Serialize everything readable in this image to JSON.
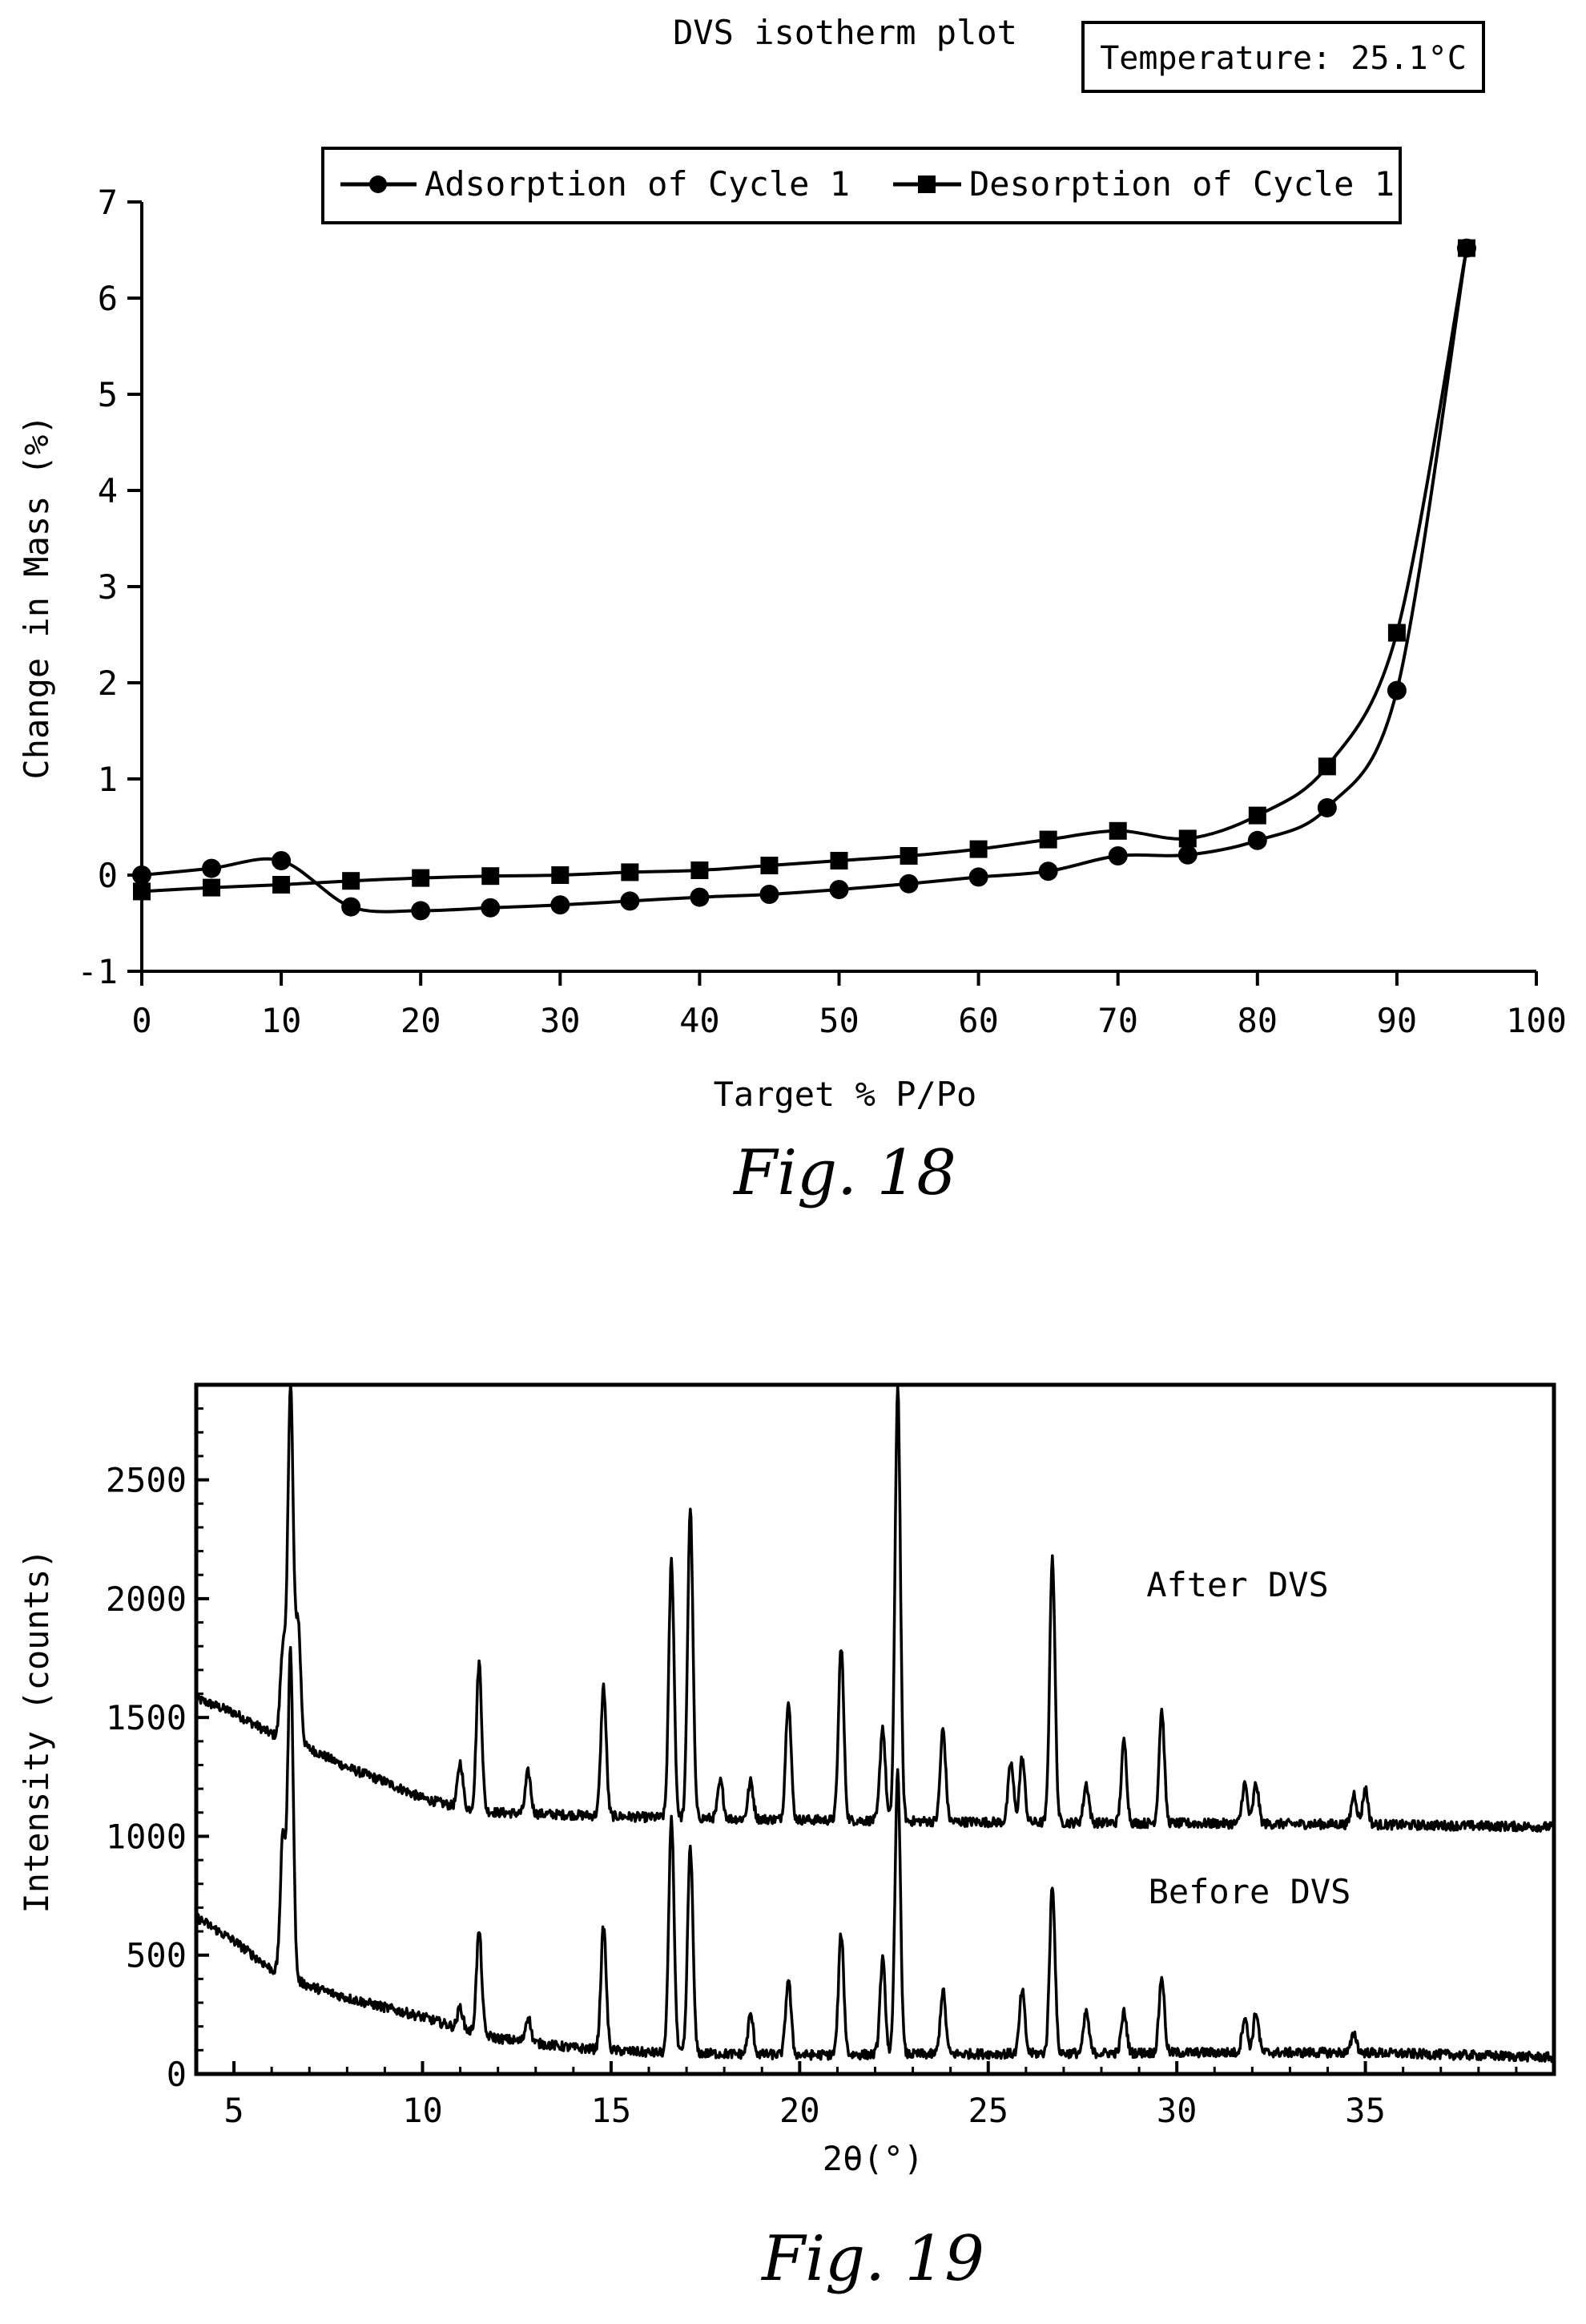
{
  "fig18": {
    "caption": "Fig. 18",
    "temperature_box": "Temperature: 25.1°C",
    "chart_data": {
      "type": "line",
      "title": "DVS isotherm plot",
      "xlabel": "Target % P/Po",
      "ylabel": "Change in Mass (%)",
      "xlim": [
        0,
        100
      ],
      "ylim": [
        -1,
        7
      ],
      "xticks": [
        0,
        10,
        20,
        30,
        40,
        50,
        60,
        70,
        80,
        90,
        100
      ],
      "yticks": [
        -1,
        0,
        1,
        2,
        3,
        4,
        5,
        6,
        7
      ],
      "grid": false,
      "legend_position": "top",
      "series": [
        {
          "name": "Adsorption of Cycle 1",
          "marker": "circle",
          "x": [
            0,
            5,
            10,
            15,
            20,
            25,
            30,
            35,
            40,
            45,
            50,
            55,
            60,
            65,
            70,
            75,
            80,
            85,
            90,
            95
          ],
          "y": [
            0.0,
            0.07,
            0.15,
            -0.33,
            -0.37,
            -0.34,
            -0.31,
            -0.27,
            -0.23,
            -0.2,
            -0.15,
            -0.09,
            -0.02,
            0.04,
            0.2,
            0.21,
            0.36,
            0.7,
            1.92,
            6.52
          ]
        },
        {
          "name": "Desorption of Cycle 1",
          "marker": "square",
          "x": [
            0,
            5,
            10,
            15,
            20,
            25,
            30,
            35,
            40,
            45,
            50,
            55,
            60,
            65,
            70,
            75,
            80,
            85,
            90,
            95
          ],
          "y": [
            -0.17,
            -0.13,
            -0.1,
            -0.06,
            -0.03,
            -0.01,
            0.0,
            0.03,
            0.05,
            0.1,
            0.15,
            0.2,
            0.27,
            0.37,
            0.46,
            0.38,
            0.62,
            1.13,
            2.52,
            6.52
          ]
        }
      ]
    }
  },
  "fig19": {
    "caption": "Fig. 19",
    "chart_data": {
      "type": "line",
      "title": "",
      "xlabel": "2θ(°)",
      "ylabel": "Intensity (counts)",
      "xlim": [
        4,
        40
      ],
      "ylim": [
        0,
        2900
      ],
      "xticks": [
        5,
        10,
        15,
        20,
        25,
        30,
        35
      ],
      "yticks": [
        0,
        500,
        1000,
        1500,
        2000,
        2500
      ],
      "grid": false,
      "series": [
        {
          "name": "After DVS",
          "baseline": [
            [
              4,
              1580
            ],
            [
              5,
              1520
            ],
            [
              6,
              1430
            ],
            [
              7,
              1370
            ],
            [
              8,
              1290
            ],
            [
              9,
              1230
            ],
            [
              10,
              1160
            ],
            [
              11,
              1120
            ],
            [
              12,
              1100
            ],
            [
              14,
              1090
            ],
            [
              16,
              1080
            ],
            [
              20,
              1070
            ],
            [
              25,
              1060
            ],
            [
              30,
              1055
            ],
            [
              35,
              1050
            ],
            [
              40,
              1040
            ]
          ],
          "peaks": [
            [
              6.3,
              1800
            ],
            [
              6.5,
              2900
            ],
            [
              6.7,
              1900
            ],
            [
              11.0,
              1310
            ],
            [
              11.5,
              1730
            ],
            [
              12.8,
              1270
            ],
            [
              14.8,
              1630
            ],
            [
              16.6,
              2160
            ],
            [
              17.1,
              2380
            ],
            [
              17.9,
              1230
            ],
            [
              18.7,
              1230
            ],
            [
              19.7,
              1580
            ],
            [
              21.1,
              1800
            ],
            [
              22.2,
              1460
            ],
            [
              22.6,
              2900
            ],
            [
              23.8,
              1450
            ],
            [
              25.6,
              1310
            ],
            [
              25.9,
              1330
            ],
            [
              26.7,
              2180
            ],
            [
              27.6,
              1220
            ],
            [
              28.6,
              1400
            ],
            [
              29.6,
              1530
            ],
            [
              31.8,
              1220
            ],
            [
              32.1,
              1220
            ],
            [
              34.7,
              1180
            ],
            [
              35.0,
              1200
            ]
          ],
          "label": "After DVS"
        },
        {
          "name": "Before DVS",
          "baseline": [
            [
              4,
              660
            ],
            [
              5,
              560
            ],
            [
              6,
              440
            ],
            [
              7,
              370
            ],
            [
              8,
              320
            ],
            [
              9,
              280
            ],
            [
              10,
              240
            ],
            [
              11,
              190
            ],
            [
              12,
              150
            ],
            [
              14,
              110
            ],
            [
              16,
              90
            ],
            [
              20,
              80
            ],
            [
              25,
              85
            ],
            [
              30,
              90
            ],
            [
              35,
              90
            ],
            [
              40,
              70
            ]
          ],
          "peaks": [
            [
              6.3,
              1000
            ],
            [
              6.5,
              1780
            ],
            [
              11.0,
              280
            ],
            [
              11.5,
              600
            ],
            [
              12.8,
              240
            ],
            [
              14.8,
              620
            ],
            [
              16.6,
              1080
            ],
            [
              17.1,
              960
            ],
            [
              18.7,
              250
            ],
            [
              19.7,
              400
            ],
            [
              21.1,
              590
            ],
            [
              22.2,
              480
            ],
            [
              22.6,
              1280
            ],
            [
              23.8,
              350
            ],
            [
              25.9,
              350
            ],
            [
              26.7,
              800
            ],
            [
              27.6,
              260
            ],
            [
              28.6,
              260
            ],
            [
              29.6,
              410
            ],
            [
              31.8,
              240
            ],
            [
              32.1,
              260
            ],
            [
              34.7,
              170
            ]
          ],
          "label": "Before DVS"
        }
      ]
    }
  }
}
